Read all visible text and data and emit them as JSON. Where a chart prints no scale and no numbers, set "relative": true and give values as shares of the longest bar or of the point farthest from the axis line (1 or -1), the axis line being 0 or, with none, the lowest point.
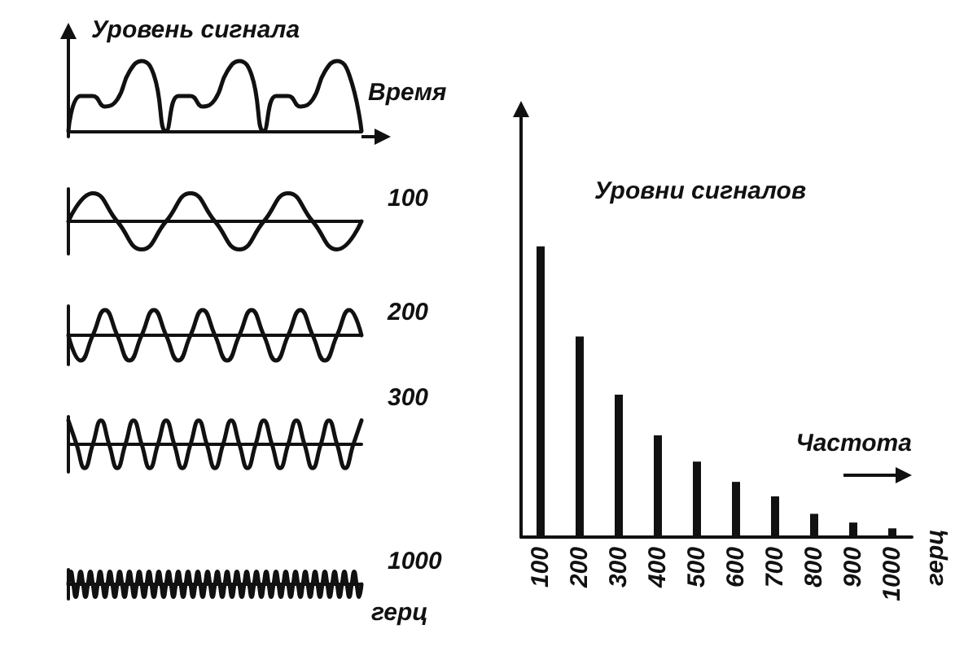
{
  "chart_data": [
    {
      "type": "line",
      "relative": true,
      "ylabel": "Уровень сигнала",
      "xlabel": "Время",
      "categories": [
        null,
        null,
        null,
        null,
        null,
        null,
        null,
        null,
        null,
        null,
        null,
        null,
        null,
        null,
        null,
        null,
        null,
        null,
        null,
        null,
        null,
        null,
        null,
        null,
        null
      ],
      "series": [
        {
          "color": "#111111",
          "values": [
            0,
            0.5,
            0.5,
            0.35,
            0.45,
            0.85,
            1,
            0.8,
            0,
            0.5,
            0.5,
            0.35,
            0.45,
            0.85,
            1,
            0.8,
            0,
            0.5,
            0.5,
            0.35,
            0.45,
            0.85,
            1,
            0.8,
            0
          ]
        }
      ]
    },
    {
      "type": "line",
      "relative": true,
      "categories": [
        null,
        null,
        null,
        null,
        null,
        null,
        null,
        null,
        null,
        null,
        null,
        null,
        null
      ],
      "series": [
        {
          "name": "100",
          "color": "#111111",
          "values": [
            0,
            1,
            0,
            -1,
            0,
            1,
            0,
            -1,
            0,
            1,
            0,
            -1,
            0
          ]
        }
      ]
    },
    {
      "type": "line",
      "relative": true,
      "categories": [
        null,
        null,
        null,
        null,
        null,
        null,
        null,
        null,
        null,
        null,
        null,
        null,
        null,
        null,
        null,
        null,
        null,
        null,
        null,
        null,
        null,
        null,
        null,
        null,
        null
      ],
      "series": [
        {
          "name": "200",
          "color": "#111111",
          "values": [
            0,
            -1,
            0,
            1,
            0,
            -1,
            0,
            1,
            0,
            -1,
            0,
            1,
            0,
            -1,
            0,
            1,
            0,
            -1,
            0,
            1,
            0,
            -1,
            0,
            1,
            0
          ]
        }
      ]
    },
    {
      "type": "line",
      "relative": true,
      "categories": [
        null,
        null,
        null,
        null,
        null,
        null,
        null,
        null,
        null,
        null,
        null,
        null,
        null,
        null,
        null,
        null,
        null,
        null,
        null,
        null,
        null,
        null,
        null,
        null,
        null,
        null,
        null,
        null,
        null,
        null,
        null,
        null,
        null,
        null,
        null,
        null,
        null
      ],
      "series": [
        {
          "name": "300",
          "color": "#111111",
          "values": [
            1,
            0,
            -1,
            0,
            1,
            0,
            -1,
            0,
            1,
            0,
            -1,
            0,
            1,
            0,
            -1,
            0,
            1,
            0,
            -1,
            0,
            1,
            0,
            -1,
            0,
            1,
            0,
            -1,
            0,
            1,
            0,
            -1,
            0,
            1,
            0,
            -1,
            0,
            1
          ]
        }
      ]
    },
    {
      "type": "line",
      "relative": true,
      "xlabel": "герц",
      "categories": [
        null,
        null,
        null,
        null,
        null,
        null,
        null,
        null,
        null,
        null,
        null,
        null,
        null,
        null,
        null,
        null,
        null,
        null,
        null,
        null,
        null,
        null,
        null,
        null,
        null,
        null,
        null,
        null,
        null,
        null,
        null,
        null,
        null,
        null,
        null,
        null,
        null,
        null,
        null,
        null,
        null,
        null,
        null,
        null,
        null,
        null,
        null,
        null,
        null,
        null,
        null,
        null,
        null,
        null,
        null,
        null,
        null,
        null,
        null,
        null,
        null,
        null,
        null,
        null,
        null,
        null,
        null,
        null,
        null,
        null,
        null,
        null,
        null,
        null,
        null,
        null,
        null,
        null,
        null,
        null,
        null,
        null,
        null,
        null,
        null,
        null,
        null,
        null,
        null,
        null,
        null,
        null,
        null,
        null,
        null,
        null,
        null,
        null,
        null,
        null,
        null,
        null,
        null,
        null,
        null,
        null,
        null,
        null,
        null,
        null,
        null,
        null,
        null,
        null,
        null,
        null,
        null,
        null,
        null,
        null,
        null
      ],
      "series": [
        {
          "name": "1000",
          "color": "#111111",
          "values": [
            0,
            1,
            0,
            -1,
            0,
            1,
            0,
            -1,
            0,
            1,
            0,
            -1,
            0,
            1,
            0,
            -1,
            0,
            1,
            0,
            -1,
            0,
            1,
            0,
            -1,
            0,
            1,
            0,
            -1,
            0,
            1,
            0,
            -1,
            0,
            1,
            0,
            -1,
            0,
            1,
            0,
            -1,
            0,
            1,
            0,
            -1,
            0,
            1,
            0,
            -1,
            0,
            1,
            0,
            -1,
            0,
            1,
            0,
            -1,
            0,
            1,
            0,
            -1,
            0,
            1,
            0,
            -1,
            0,
            1,
            0,
            -1,
            0,
            1,
            0,
            -1,
            0,
            1,
            0,
            -1,
            0,
            1,
            0,
            -1,
            0,
            1,
            0,
            -1,
            0,
            1,
            0,
            -1,
            0,
            1,
            0,
            -1,
            0,
            1,
            0,
            -1,
            0,
            1,
            0,
            -1,
            0,
            1,
            0,
            -1,
            0,
            1,
            0,
            -1,
            0,
            1,
            0,
            -1,
            0,
            1,
            0,
            -1,
            0,
            1,
            0,
            -1,
            0
          ]
        }
      ]
    },
    {
      "type": "bar",
      "relative": true,
      "ylabel": "Уровни сигналов",
      "xlabel": "Частота",
      "annotations": [
        "герц"
      ],
      "color": "#111111",
      "categories": [
        "100",
        "200",
        "300",
        "400",
        "500",
        "600",
        "700",
        "800",
        "900",
        "1000"
      ],
      "values": [
        1,
        0.69,
        0.49,
        0.35,
        0.26,
        0.19,
        0.14,
        0.08,
        0.05,
        0.03
      ]
    }
  ]
}
